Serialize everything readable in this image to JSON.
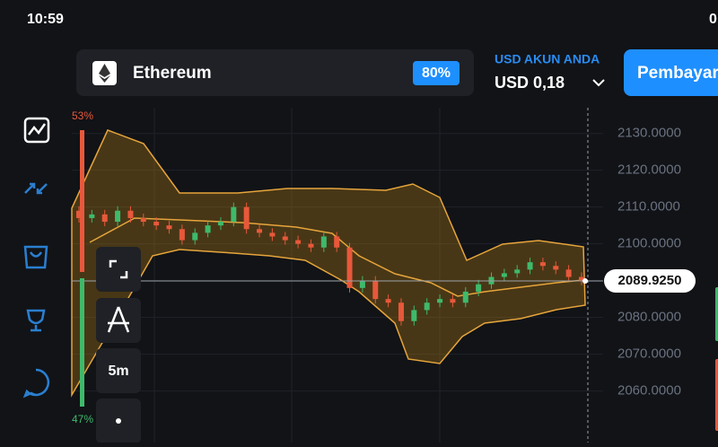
{
  "status_bar": {
    "time": "10:59",
    "right_clip": "0"
  },
  "asset": {
    "name": "Ethereum",
    "payout": "80%"
  },
  "account": {
    "label": "USD AKUN ANDA",
    "balance": "USD 0,18"
  },
  "action_button": "Pembayaran",
  "sentiment": {
    "up": "53%",
    "down": "47%"
  },
  "timeframe": "5m",
  "chart_data": {
    "type": "candlestick",
    "open": [
      2109,
      2107,
      2108,
      2106,
      2109,
      2107,
      2106,
      2105,
      2104,
      2101,
      2103,
      2105,
      2106,
      2110,
      2104,
      2103,
      2102,
      2101,
      2100,
      2099,
      2102,
      2099,
      2088,
      2090,
      2085,
      2084,
      2079,
      2082,
      2084,
      2085,
      2084,
      2087,
      2089,
      2091,
      2092,
      2093,
      2095,
      2094,
      2093,
      2091
    ],
    "close": [
      2107,
      2108,
      2106,
      2109,
      2107,
      2106,
      2105,
      2104,
      2101,
      2103,
      2105,
      2106,
      2110,
      2104,
      2103,
      2102,
      2101,
      2100,
      2099,
      2102,
      2099,
      2088,
      2090,
      2085,
      2084,
      2079,
      2082,
      2084,
      2085,
      2084,
      2087,
      2089,
      2091,
      2092,
      2093,
      2095,
      2094,
      2093,
      2091,
      2090
    ],
    "up_color": "#3fb96b",
    "down_color": "#e8583b",
    "ylim": [
      2046,
      2137
    ],
    "yticks": [
      {
        "value": 2130,
        "label": "2130.0000"
      },
      {
        "value": 2120,
        "label": "2120.0000"
      },
      {
        "value": 2110,
        "label": "2110.0000"
      },
      {
        "value": 2100,
        "label": "2100.0000"
      },
      {
        "value": 2090,
        "label": "2090.0000"
      },
      {
        "value": 2080,
        "label": "2080.0000"
      },
      {
        "value": 2070,
        "label": "2070.0000"
      },
      {
        "value": 2060,
        "label": "2060.0000"
      }
    ],
    "current_price": {
      "value": 2089.925,
      "label": "2089.9250"
    },
    "grid": true
  }
}
